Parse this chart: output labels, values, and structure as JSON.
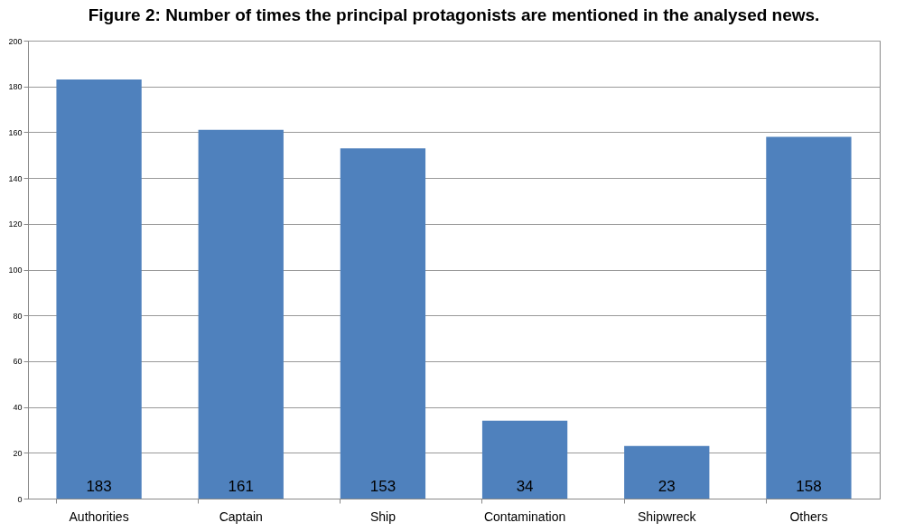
{
  "chart_data": {
    "type": "bar",
    "title": "Figure 2: Number of times the principal protagonists are mentioned in the analysed news.",
    "categories": [
      "Authorities",
      "Captain",
      "Ship",
      "Contamination",
      "Shipwreck",
      "Others"
    ],
    "values": [
      183,
      161,
      153,
      34,
      23,
      158
    ],
    "color": "#4f81bd",
    "ylim": [
      0,
      200
    ],
    "yticks": [
      0,
      20,
      40,
      60,
      80,
      100,
      120,
      140,
      160,
      180,
      200
    ],
    "grid": "y",
    "data_labels": true
  }
}
